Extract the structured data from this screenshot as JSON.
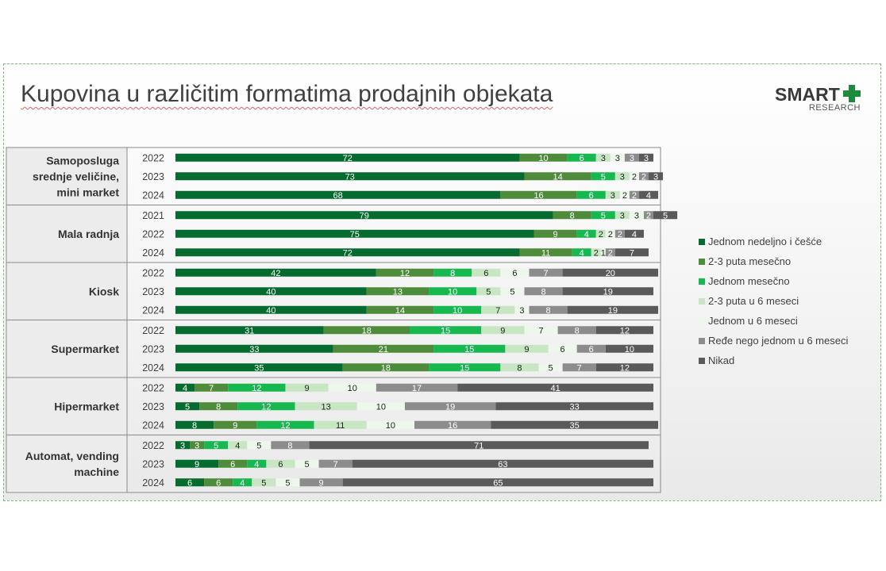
{
  "title": "Kupovina u različitim formatima prodajnih objekata",
  "logo": {
    "main": "SMART",
    "sub": "RESEARCH"
  },
  "colors": [
    "#056b2f",
    "#4e8b3b",
    "#17b84f",
    "#c8e6c4",
    "#eef7eb",
    "#8c8c8c",
    "#5a5a5a"
  ],
  "chart_data": {
    "type": "bar",
    "orientation": "horizontal",
    "stacked": true,
    "xlim": [
      0,
      100
    ],
    "legend_position": "right",
    "legend": [
      "Jednom nedeljno i češće",
      "2-3 puta mesečno",
      "Jednom mesečno",
      "2-3 puta u 6 meseci",
      "Jednom u 6 meseci",
      "Ređe nego jednom u 6 meseci",
      "Nikad"
    ],
    "groups": [
      {
        "label": [
          "Samoposluga",
          "srednje veličine,",
          "mini market"
        ],
        "rows": [
          {
            "year": "2022",
            "values": [
              72,
              10,
              6,
              3,
              3,
              3,
              3
            ]
          },
          {
            "year": "2023",
            "values": [
              73,
              14,
              5,
              3,
              2,
              2,
              3
            ]
          },
          {
            "year": "2024",
            "values": [
              68,
              16,
              6,
              3,
              2,
              2,
              4
            ]
          }
        ]
      },
      {
        "label": [
          "Mala radnja"
        ],
        "rows": [
          {
            "year": "2021",
            "values": [
              79,
              8,
              5,
              3,
              3,
              2,
              5
            ]
          },
          {
            "year": "2022",
            "values": [
              75,
              9,
              4,
              2,
              2,
              2,
              4
            ]
          },
          {
            "year": "2024",
            "values": [
              72,
              11,
              4,
              2,
              1,
              2,
              7
            ]
          }
        ]
      },
      {
        "label": [
          "Kiosk"
        ],
        "rows": [
          {
            "year": "2022",
            "values": [
              42,
              12,
              8,
              6,
              6,
              7,
              20
            ]
          },
          {
            "year": "2023",
            "values": [
              40,
              13,
              10,
              5,
              5,
              8,
              19
            ]
          },
          {
            "year": "2024",
            "values": [
              40,
              14,
              10,
              7,
              3,
              8,
              19
            ]
          }
        ]
      },
      {
        "label": [
          "Supermarket"
        ],
        "rows": [
          {
            "year": "2022",
            "values": [
              31,
              18,
              15,
              9,
              7,
              8,
              12
            ]
          },
          {
            "year": "2023",
            "values": [
              33,
              21,
              15,
              9,
              6,
              6,
              10
            ]
          },
          {
            "year": "2024",
            "values": [
              35,
              18,
              15,
              8,
              5,
              7,
              12
            ]
          }
        ]
      },
      {
        "label": [
          "Hipermarket"
        ],
        "rows": [
          {
            "year": "2022",
            "values": [
              4,
              7,
              12,
              9,
              10,
              17,
              41
            ]
          },
          {
            "year": "2023",
            "values": [
              5,
              8,
              12,
              13,
              10,
              19,
              33
            ]
          },
          {
            "year": "2024",
            "values": [
              8,
              9,
              12,
              11,
              10,
              16,
              35
            ]
          }
        ]
      },
      {
        "label": [
          "Automat, vending",
          "machine"
        ],
        "rows": [
          {
            "year": "2022",
            "values": [
              3,
              3,
              5,
              4,
              5,
              8,
              71
            ]
          },
          {
            "year": "2023",
            "values": [
              9,
              6,
              4,
              6,
              5,
              7,
              63
            ]
          },
          {
            "year": "2024",
            "values": [
              6,
              6,
              4,
              5,
              5,
              9,
              65
            ]
          }
        ]
      }
    ]
  }
}
